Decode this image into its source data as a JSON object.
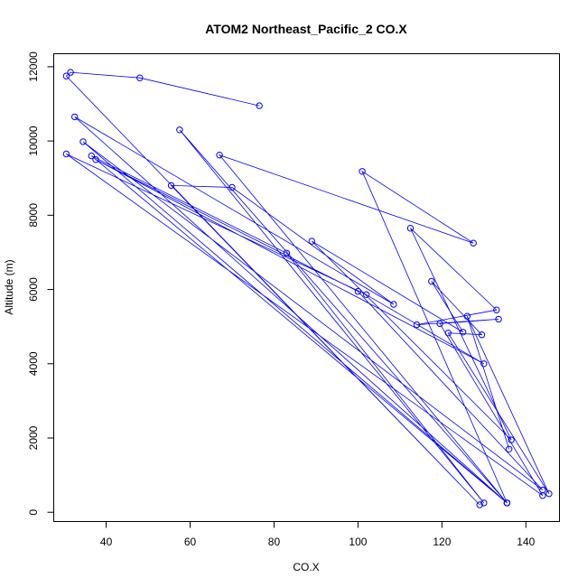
{
  "chart_data": {
    "type": "line",
    "title": "ATOM2 Northeast_Pacific_2 CO.X",
    "xlabel": "CO.X",
    "ylabel": "Altitude (m)",
    "xlim": [
      27.5,
      148
    ],
    "ylim": [
      -250,
      12350
    ],
    "xticks": [
      40,
      60,
      80,
      100,
      120,
      140
    ],
    "yticks": [
      0,
      2000,
      4000,
      6000,
      8000,
      10000,
      12000
    ],
    "colors": {
      "series": "#0000ff",
      "axes": "#000000",
      "background": "#ffffff"
    },
    "series": [
      {
        "x": [
          76.5,
          48.0,
          31.5,
          30.5,
          129.0,
          55.5,
          70.0,
          108.5,
          32.5,
          135.5,
          57.5,
          130.0,
          83.0,
          36.5,
          135.5,
          67.0,
          127.5,
          101.0,
          135.5,
          34.5,
          144.0,
          100.0,
          37.5,
          130.0,
          102.0,
          30.5,
          144.0,
          119.5,
          133.5,
          114.0,
          133.0,
          112.5,
          136.5,
          89.0,
          125.0,
          117.5,
          129.5,
          121.5,
          145.5,
          126.0,
          136.0
        ],
        "y": [
          10950,
          11700,
          11850,
          11750,
          200,
          8800,
          8750,
          5600,
          10650,
          250,
          10300,
          250,
          6980,
          9600,
          250,
          9620,
          7250,
          9180,
          250,
          9980,
          600,
          5950,
          9500,
          4000,
          5860,
          9650,
          450,
          5080,
          5200,
          5050,
          5450,
          7650,
          1950,
          7300,
          4850,
          6220,
          4780,
          4830,
          500,
          5280,
          1700
        ]
      }
    ]
  }
}
